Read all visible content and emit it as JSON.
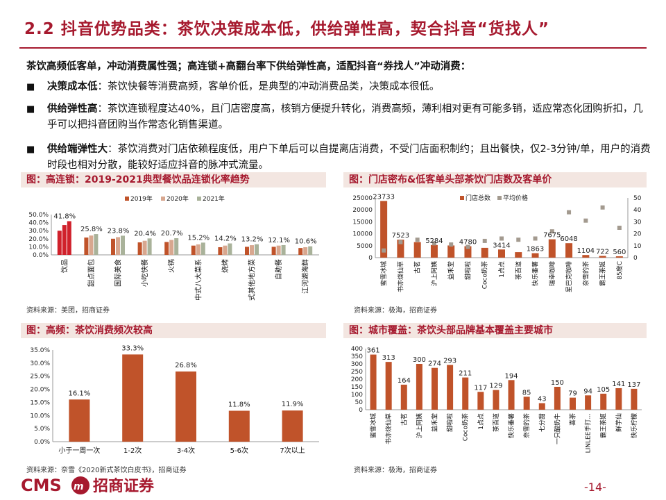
{
  "header": {
    "title": "2.2 抖音优势品类：茶饮决策成本低，供给弹性高，契合抖音“货找人”",
    "lead": "茶饮高频低客单，冲动消费属性强；高连锁+高翻台率下供给弹性高，适配抖音“券找人”冲动消费："
  },
  "bullets": [
    {
      "key": "决策成本低",
      "text": "：茶饮快餐等消费高频，客单价低，是典型的冲动消费品类，决策成本很低。"
    },
    {
      "key": "供给弹性高",
      "text": "：茶饮连锁程度达40%，且门店密度高，核销方便提升转化，消费高频，薄利相对更有可能多销，适应常态化团购折扣，几乎可以把抖音团购当作常态化销售渠道。"
    },
    {
      "key": "供给端弹性大",
      "text": "：茶饮消费对门店依赖程度低，用户下单后可以自提离店消费，不受门店面积制约；且出餐快，仅2-3分钟/单，用户的消费时段也相对分散，能较好适应抖音的脉冲式流量。"
    }
  ],
  "panels": {
    "chain": {
      "title": "图：高连锁：2019-2021典型餐饮品连锁化率趋势",
      "source": "资料来源：美团，招商证券"
    },
    "stores": {
      "title": "图：门店密布&低客单头部茶饮门店数及客单价",
      "source": "资料来源：极海，招商证券"
    },
    "freq": {
      "title": "图：高频：茶饮消费频次较高",
      "source": "资料来源：奈雪《2020新式茶饮白皮书》，招商证券"
    },
    "cities": {
      "title": "图：城市覆盖：茶饮头部品牌基本覆盖主要城市",
      "source": "资料来源：极海，招商证券"
    }
  },
  "colors": {
    "accent": "#a6192e",
    "bar": "#c0532a",
    "bar2020": "#d8a78f",
    "bar2021": "#a9b29a",
    "gray": "#a39a8f"
  },
  "chart_data": [
    {
      "type": "bar",
      "id": "chain",
      "categories": [
        "饮品",
        "甜点面包",
        "国际美食",
        "小吃快餐",
        "火锅",
        "中式八大菜系",
        "烧烤",
        "中式其他地方菜",
        "自助餐",
        "江河湖海鲜"
      ],
      "series": [
        {
          "name": "2019年",
          "values": [
            30.0,
            21.5,
            20.0,
            15.5,
            16.0,
            11.5,
            9.5,
            10.0,
            10.0,
            8.5
          ]
        },
        {
          "name": "2020年",
          "values": [
            37.0,
            24.0,
            22.0,
            17.5,
            18.5,
            13.0,
            11.5,
            12.0,
            11.5,
            9.5
          ]
        },
        {
          "name": "2021年",
          "values": [
            41.8,
            25.8,
            23.8,
            20.4,
            20.7,
            15.2,
            14.2,
            13.2,
            12.1,
            10.6
          ]
        }
      ],
      "labels": [
        "41.8%",
        "25.8%",
        "23.8%",
        "20.4%",
        "20.7%",
        "15.2%",
        "14.2%",
        "13.2%",
        "12.1%",
        "10.6%"
      ],
      "yticks": [
        "0.0%",
        "10.0%",
        "20.0%",
        "30.0%",
        "40.0%",
        "50.0%"
      ],
      "ylim": [
        0,
        50
      ]
    },
    {
      "type": "bar",
      "id": "stores",
      "categories": [
        "蜜雪冰城",
        "书亦烧仙草",
        "古茗",
        "沪上阿姨",
        "益禾堂",
        "甜啦啦",
        "Coco奶茶",
        "1点点",
        "茶百道",
        "快乐番薯",
        "瑞幸咖啡",
        "星巴克咖啡",
        "奈雪的茶",
        "霸王茶姬",
        "85度C"
      ],
      "series": [
        {
          "name": "门店总数",
          "values": [
            23733,
            7523,
            6500,
            5284,
            5100,
            4780,
            4100,
            3414,
            2300,
            1863,
            7675,
            6048,
            1104,
            722,
            560
          ]
        },
        {
          "name": "平均价格",
          "values": [
            6,
            13,
            15,
            12,
            11,
            9,
            14,
            16,
            15,
            16,
            22,
            38,
            31,
            42,
            25
          ]
        }
      ],
      "labels": [
        "23733",
        "7523",
        "",
        "5284",
        "",
        "4780",
        "",
        "3414",
        "",
        "1863",
        "7675",
        "6048",
        "1104",
        "722",
        "560"
      ],
      "yticks": [
        "0",
        "5000",
        "10000",
        "15000",
        "20000",
        "25000"
      ],
      "y2ticks": [
        "0",
        "10",
        "20",
        "30",
        "40",
        "50"
      ],
      "ylim": [
        0,
        25000
      ],
      "y2lim": [
        0,
        50
      ]
    },
    {
      "type": "bar",
      "id": "freq",
      "categories": [
        "小于一周一次",
        "1-2次",
        "3-4次",
        "5-6次",
        "7次以上"
      ],
      "values": [
        16.1,
        33.3,
        26.8,
        11.8,
        11.9
      ],
      "labels": [
        "16.1%",
        "33.3%",
        "26.8%",
        "11.8%",
        "11.9%"
      ],
      "yticks": [
        "0.0%",
        "5.0%",
        "10.0%",
        "15.0%",
        "20.0%",
        "25.0%",
        "30.0%",
        "35.0%"
      ],
      "ylim": [
        0,
        35
      ]
    },
    {
      "type": "bar",
      "id": "cities",
      "categories": [
        "蜜雪冰城",
        "书亦烧仙草",
        "古茗",
        "沪上阿姨",
        "益禾堂",
        "甜啦啦",
        "Coco奶茶",
        "1点点",
        "茶百道",
        "快乐番薯",
        "奈雪的茶",
        "七分甜",
        "一只酸奶牛",
        "喜茶",
        "LINLEE手打...",
        "霸王茶姬",
        "鲜芋仙",
        "快乐柠檬"
      ],
      "values": [
        361,
        313,
        164,
        300,
        274,
        293,
        211,
        117,
        129,
        194,
        85,
        43,
        150,
        79,
        94,
        105,
        141,
        137
      ],
      "labels": [
        "361",
        "313",
        "164",
        "300",
        "274",
        "293",
        "211",
        "117",
        "129",
        "194",
        "85",
        "43",
        "150",
        "79",
        "94",
        "105",
        "141",
        "137"
      ],
      "yticks": [
        "0",
        "50",
        "100",
        "150",
        "200",
        "250",
        "300",
        "350",
        "400"
      ],
      "ylim": [
        0,
        400
      ]
    }
  ],
  "footer": {
    "logo_cms": "CMS",
    "logo_cn": "招商证券",
    "page": "-14-"
  }
}
